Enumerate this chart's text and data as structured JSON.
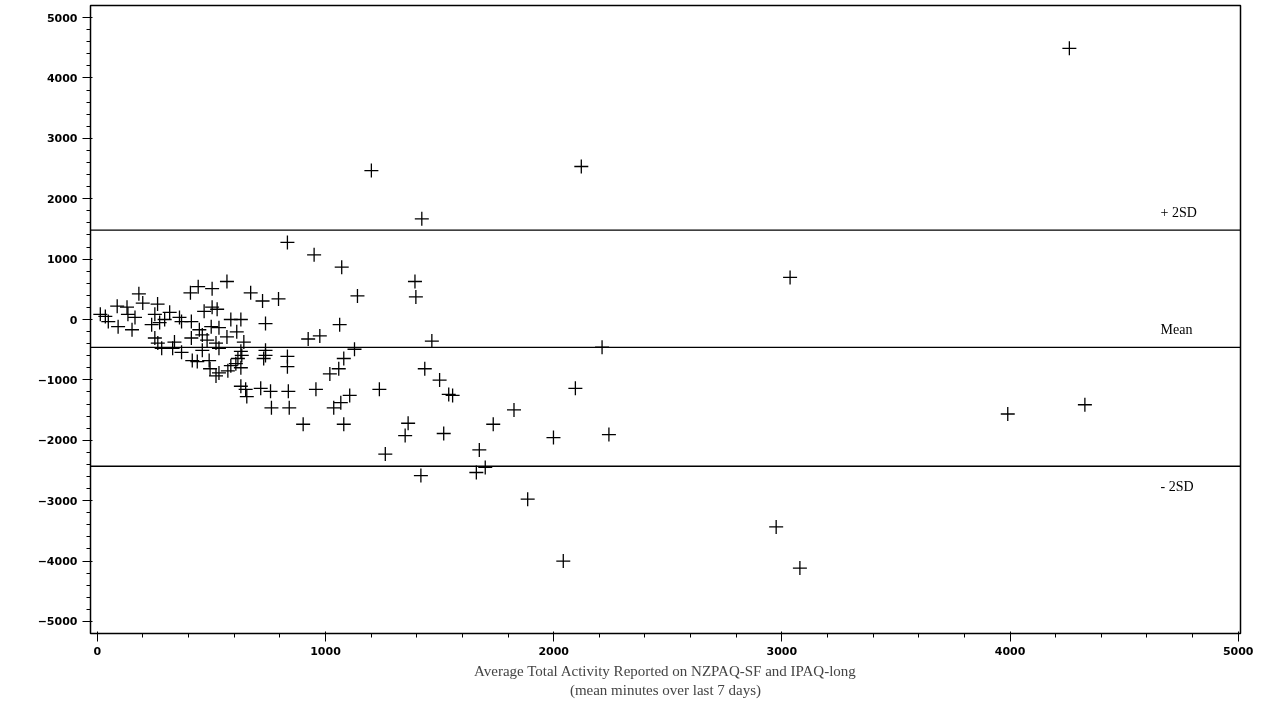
{
  "chart_data": {
    "type": "scatter",
    "xlabel": "Average Total Activity Reported on NZPAQ-SF and IPAQ-long\n(mean minutes over last 7 days)",
    "marker": "cross",
    "grid": false,
    "xlim": [
      -30,
      5010
    ],
    "ylim": [
      -5200,
      5200
    ],
    "xticks": [
      0,
      1000,
      2000,
      3000,
      4000,
      5000
    ],
    "yticks": [
      -5000,
      -4000,
      -3000,
      -2000,
      -1000,
      0,
      1000,
      2000,
      3000,
      4000,
      5000
    ],
    "ref_lines": [
      {
        "axis": "y",
        "value": 1480,
        "label": "+ 2SD"
      },
      {
        "axis": "y",
        "value": -460,
        "label": "Mean"
      },
      {
        "axis": "y",
        "value": -2430,
        "label": "- 2SD"
      }
    ],
    "series": [
      {
        "color": "#000000",
        "x": [
          4260,
          1201,
          2121,
          1422,
          3036,
          3990,
          4328,
          1886,
          2042,
          2975,
          3079,
          833,
          950,
          1071,
          1140,
          1062,
          924,
          975,
          1127,
          1080,
          1058,
          1019,
          958,
          1236,
          1106,
          1067,
          1036,
          1080,
          902,
          568,
          442,
          408,
          503,
          182,
          672,
          724,
          794,
          199,
          87,
          130,
          264,
          503,
          525,
          468,
          13,
          35,
          48,
          134,
          165,
          252,
          295,
          317,
          360,
          369,
          238,
          273,
          91,
          152,
          412,
          447,
          460,
          499,
          533,
          629,
          737,
          412,
          481,
          520,
          568,
          611,
          642,
          252,
          265,
          338,
          330,
          369,
          282,
          460,
          533,
          629,
          633,
          416,
          438,
          490,
          494,
          520,
          533,
          572,
          585,
          607,
          616,
          629,
          737,
          737,
          729,
          833,
          833,
          629,
          650,
          655,
          716,
          759,
          763,
          841,
          837,
          585,
          1392,
          1396,
          1466,
          2212,
          1435,
          1500,
          1540,
          1557,
          2095,
          1826,
          1735,
          1362,
          1349,
          1518,
          1999,
          2242,
          1674,
          1262,
          1418,
          1661,
          1700
        ],
        "values": [
          4490,
          2466,
          2534,
          1667,
          697,
          -1565,
          -1412,
          -2976,
          -4000,
          -3435,
          -4116,
          1276,
          1071,
          867,
          391,
          -85,
          -323,
          -272,
          -493,
          -646,
          -816,
          -901,
          -1156,
          -1156,
          -1258,
          -1377,
          -1463,
          -1735,
          -1735,
          629,
          544,
          442,
          510,
          425,
          442,
          306,
          340,
          272,
          221,
          204,
          255,
          204,
          170,
          136,
          85,
          51,
          -34,
          85,
          34,
          85,
          0,
          119,
          34,
          -34,
          -85,
          -51,
          -119,
          -170,
          -34,
          -170,
          -255,
          -119,
          -136,
          0,
          -68,
          -306,
          -340,
          -391,
          -289,
          -204,
          -374,
          -306,
          -391,
          -374,
          -476,
          -544,
          -476,
          -510,
          -476,
          -527,
          -595,
          -680,
          -697,
          -680,
          -816,
          -935,
          -884,
          -850,
          -765,
          -731,
          -646,
          -799,
          -510,
          -595,
          -646,
          -612,
          -782,
          -1105,
          -1156,
          -1276,
          -1139,
          -1190,
          -1463,
          -1463,
          -1190,
          0,
          629,
          374,
          -357,
          -459,
          -816,
          -1003,
          -1241,
          -1258,
          -1139,
          -1497,
          -1735,
          -1718,
          -1922,
          -1888,
          -1956,
          -1905,
          -2160,
          -2228,
          -2585,
          -2534,
          -2449
        ]
      }
    ]
  }
}
